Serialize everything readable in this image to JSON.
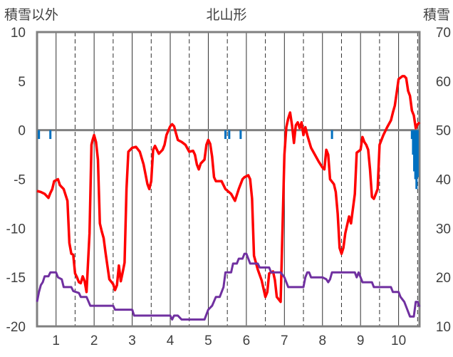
{
  "chart_data": {
    "type": "line",
    "title": "北山形",
    "ylabel_left": "積雪以外",
    "ylabel_right": "積雪",
    "x_ticks": [
      "1",
      "2",
      "3",
      "4",
      "5",
      "6",
      "7",
      "8",
      "9",
      "10"
    ],
    "xlim": [
      0.5,
      10.55
    ],
    "ylim_left": [
      -20,
      10
    ],
    "ylim_right": [
      10,
      70
    ],
    "yticks_left": [
      10,
      5,
      0,
      -5,
      -10,
      -15,
      -20
    ],
    "yticks_right": [
      70,
      60,
      50,
      40,
      30,
      20,
      10
    ],
    "grid": "vertical: solid at integers, dashed at halves",
    "colors": {
      "red": "#ff0000",
      "purple": "#7030a0",
      "blue": "#0070c0",
      "axis": "#808080"
    },
    "series": [
      {
        "axis": "left",
        "color": "#ff0000",
        "style": "line",
        "points": [
          [
            0.5,
            -6.2
          ],
          [
            0.6,
            -6.3
          ],
          [
            0.7,
            -6.5
          ],
          [
            0.8,
            -6.9
          ],
          [
            0.85,
            -6.4
          ],
          [
            0.9,
            -6.0
          ],
          [
            0.95,
            -5.2
          ],
          [
            1.05,
            -5.0
          ],
          [
            1.1,
            -5.6
          ],
          [
            1.2,
            -6.0
          ],
          [
            1.3,
            -7.2
          ],
          [
            1.35,
            -11.5
          ],
          [
            1.4,
            -12.6
          ],
          [
            1.45,
            -12.7
          ],
          [
            1.5,
            -14.6
          ],
          [
            1.55,
            -15.0
          ],
          [
            1.6,
            -15.5
          ],
          [
            1.65,
            -15.6
          ],
          [
            1.7,
            -14.9
          ],
          [
            1.75,
            -15.4
          ],
          [
            1.8,
            -16.5
          ],
          [
            1.88,
            -10.5
          ],
          [
            1.93,
            -1.5
          ],
          [
            1.96,
            -1.0
          ],
          [
            2.0,
            -0.5
          ],
          [
            2.05,
            -1.2
          ],
          [
            2.1,
            -3.0
          ],
          [
            2.15,
            -9.5
          ],
          [
            2.2,
            -10.3
          ],
          [
            2.25,
            -11.0
          ],
          [
            2.3,
            -12.5
          ],
          [
            2.4,
            -15.2
          ],
          [
            2.5,
            -15.7
          ],
          [
            2.55,
            -16.3
          ],
          [
            2.6,
            -15.8
          ],
          [
            2.65,
            -13.8
          ],
          [
            2.7,
            -15.4
          ],
          [
            2.75,
            -14.5
          ],
          [
            2.8,
            -13.5
          ],
          [
            2.85,
            -6.0
          ],
          [
            2.9,
            -2.2
          ],
          [
            3.0,
            -1.8
          ],
          [
            3.1,
            -1.7
          ],
          [
            3.2,
            -2.2
          ],
          [
            3.3,
            -3.5
          ],
          [
            3.4,
            -5.5
          ],
          [
            3.45,
            -6.0
          ],
          [
            3.5,
            -5.2
          ],
          [
            3.55,
            -2.0
          ],
          [
            3.6,
            -1.6
          ],
          [
            3.65,
            -2.0
          ],
          [
            3.7,
            -2.4
          ],
          [
            3.8,
            -2.0
          ],
          [
            3.85,
            -1.5
          ],
          [
            3.9,
            -0.5
          ],
          [
            4.0,
            0.4
          ],
          [
            4.05,
            0.6
          ],
          [
            4.1,
            0.4
          ],
          [
            4.15,
            -0.3
          ],
          [
            4.2,
            -1.0
          ],
          [
            4.3,
            -1.2
          ],
          [
            4.4,
            -1.5
          ],
          [
            4.5,
            -2.2
          ],
          [
            4.6,
            -2.1
          ],
          [
            4.65,
            -2.5
          ],
          [
            4.7,
            -3.5
          ],
          [
            4.75,
            -4.0
          ],
          [
            4.8,
            -3.4
          ],
          [
            4.9,
            -3.0
          ],
          [
            4.95,
            -1.5
          ],
          [
            5.0,
            -1.0
          ],
          [
            5.05,
            -1.4
          ],
          [
            5.1,
            -2.7
          ],
          [
            5.15,
            -4.8
          ],
          [
            5.2,
            -5.2
          ],
          [
            5.35,
            -5.2
          ],
          [
            5.45,
            -6.0
          ],
          [
            5.6,
            -6.5
          ],
          [
            5.7,
            -7.2
          ],
          [
            5.8,
            -6.0
          ],
          [
            5.9,
            -5.0
          ],
          [
            5.95,
            -4.8
          ],
          [
            6.05,
            -4.6
          ],
          [
            6.1,
            -5.0
          ],
          [
            6.15,
            -7.0
          ],
          [
            6.2,
            -12.8
          ],
          [
            6.3,
            -14.2
          ],
          [
            6.4,
            -15.3
          ],
          [
            6.5,
            -17.0
          ],
          [
            6.55,
            -16.5
          ],
          [
            6.6,
            -14.6
          ],
          [
            6.7,
            -14.4
          ],
          [
            6.75,
            -15.3
          ],
          [
            6.8,
            -17.0
          ],
          [
            6.9,
            -17.5
          ],
          [
            7.0,
            -2.5
          ],
          [
            7.05,
            0.3
          ],
          [
            7.1,
            1.2
          ],
          [
            7.15,
            1.8
          ],
          [
            7.2,
            0.5
          ],
          [
            7.25,
            -1.3
          ],
          [
            7.3,
            0.5
          ],
          [
            7.35,
            0.8
          ],
          [
            7.4,
            0.2
          ],
          [
            7.45,
            0.8
          ],
          [
            7.5,
            -0.5
          ],
          [
            7.55,
            0.3
          ],
          [
            7.6,
            -0.5
          ],
          [
            7.7,
            -1.8
          ],
          [
            7.8,
            -2.5
          ],
          [
            7.9,
            -3.2
          ],
          [
            8.0,
            -3.8
          ],
          [
            8.05,
            -4.0
          ],
          [
            8.1,
            -2.0
          ],
          [
            8.15,
            -2.5
          ],
          [
            8.2,
            -5.0
          ],
          [
            8.3,
            -5.5
          ],
          [
            8.35,
            -6.3
          ],
          [
            8.4,
            -8.5
          ],
          [
            8.45,
            -12.0
          ],
          [
            8.5,
            -12.6
          ],
          [
            8.55,
            -12.0
          ],
          [
            8.6,
            -10.5
          ],
          [
            8.7,
            -8.8
          ],
          [
            8.75,
            -9.5
          ],
          [
            8.8,
            -8.0
          ],
          [
            8.85,
            -6.5
          ],
          [
            8.9,
            -2.3
          ],
          [
            9.0,
            -2.0
          ],
          [
            9.05,
            -0.7
          ],
          [
            9.1,
            -1.2
          ],
          [
            9.15,
            -1.5
          ],
          [
            9.2,
            -2.0
          ],
          [
            9.25,
            -4.0
          ],
          [
            9.3,
            -6.8
          ],
          [
            9.35,
            -7.0
          ],
          [
            9.4,
            -6.5
          ],
          [
            9.45,
            -6.0
          ],
          [
            9.5,
            -1.5
          ],
          [
            9.6,
            -0.5
          ],
          [
            9.7,
            0.3
          ],
          [
            9.8,
            1.0
          ],
          [
            9.85,
            1.8
          ],
          [
            9.9,
            2.5
          ],
          [
            9.95,
            3.8
          ],
          [
            10.0,
            5.2
          ],
          [
            10.1,
            5.5
          ],
          [
            10.15,
            5.5
          ],
          [
            10.2,
            5.3
          ],
          [
            10.25,
            4.0
          ],
          [
            10.3,
            3.5
          ],
          [
            10.35,
            2.0
          ],
          [
            10.4,
            1.5
          ],
          [
            10.45,
            0.2
          ],
          [
            10.5,
            0.6
          ],
          [
            10.55,
            0.8
          ]
        ]
      },
      {
        "axis": "left",
        "color": "#7030a0",
        "style": "line",
        "points": [
          [
            0.5,
            -17.5
          ],
          [
            0.55,
            -16.5
          ],
          [
            0.6,
            -15.8
          ],
          [
            0.65,
            -15.5
          ],
          [
            0.7,
            -14.9
          ],
          [
            0.8,
            -14.9
          ],
          [
            0.85,
            -14.5
          ],
          [
            1.0,
            -14.5
          ],
          [
            1.05,
            -15.0
          ],
          [
            1.15,
            -15.2
          ],
          [
            1.2,
            -16.0
          ],
          [
            1.4,
            -16.0
          ],
          [
            1.45,
            -16.4
          ],
          [
            1.6,
            -16.6
          ],
          [
            1.65,
            -17.0
          ],
          [
            1.8,
            -17.0
          ],
          [
            1.9,
            -17.9
          ],
          [
            2.0,
            -17.9
          ],
          [
            2.05,
            -17.9
          ],
          [
            2.5,
            -17.9
          ],
          [
            2.55,
            -18.3
          ],
          [
            3.0,
            -18.3
          ],
          [
            3.05,
            -18.9
          ],
          [
            3.5,
            -18.9
          ],
          [
            3.55,
            -18.9
          ],
          [
            4.0,
            -18.9
          ],
          [
            4.05,
            -19.3
          ],
          [
            4.1,
            -18.9
          ],
          [
            4.2,
            -18.9
          ],
          [
            4.3,
            -19.3
          ],
          [
            4.9,
            -19.3
          ],
          [
            5.0,
            -18.3
          ],
          [
            5.1,
            -17.9
          ],
          [
            5.2,
            -17.0
          ],
          [
            5.3,
            -17.0
          ],
          [
            5.4,
            -16.0
          ],
          [
            5.45,
            -14.5
          ],
          [
            5.5,
            -14.5
          ],
          [
            5.6,
            -14.5
          ],
          [
            5.65,
            -13.6
          ],
          [
            5.75,
            -13.6
          ],
          [
            5.8,
            -13.1
          ],
          [
            5.9,
            -13.1
          ],
          [
            5.95,
            -12.6
          ],
          [
            6.0,
            -12.6
          ],
          [
            6.05,
            -13.1
          ],
          [
            6.1,
            -13.6
          ],
          [
            6.3,
            -13.6
          ],
          [
            6.35,
            -14.0
          ],
          [
            6.6,
            -14.0
          ],
          [
            6.65,
            -14.5
          ],
          [
            6.9,
            -14.5
          ],
          [
            7.0,
            -15.0
          ],
          [
            7.05,
            -15.5
          ],
          [
            7.1,
            -16.0
          ],
          [
            7.5,
            -16.0
          ],
          [
            7.55,
            -15.0
          ],
          [
            7.6,
            -14.5
          ],
          [
            7.65,
            -14.5
          ],
          [
            7.7,
            -15.0
          ],
          [
            8.0,
            -15.0
          ],
          [
            8.1,
            -15.2
          ],
          [
            8.15,
            -15.5
          ],
          [
            8.2,
            -15.2
          ],
          [
            8.25,
            -14.5
          ],
          [
            8.5,
            -14.5
          ],
          [
            8.85,
            -14.5
          ],
          [
            8.9,
            -15.0
          ],
          [
            8.95,
            -14.5
          ],
          [
            9.0,
            -15.0
          ],
          [
            9.05,
            -15.5
          ],
          [
            9.3,
            -15.5
          ],
          [
            9.35,
            -16.0
          ],
          [
            9.8,
            -16.0
          ],
          [
            9.85,
            -16.5
          ],
          [
            10.0,
            -16.5
          ],
          [
            10.05,
            -17.0
          ],
          [
            10.15,
            -17.5
          ],
          [
            10.2,
            -18.0
          ],
          [
            10.3,
            -19.0
          ],
          [
            10.4,
            -19.0
          ],
          [
            10.45,
            -17.5
          ],
          [
            10.5,
            -17.5
          ],
          [
            10.55,
            -18.0
          ]
        ]
      },
      {
        "axis": "left",
        "color": "#0070c0",
        "style": "bars-from-zero",
        "bars": [
          [
            0.55,
            -0.9
          ],
          [
            0.85,
            -0.9
          ],
          [
            5.45,
            -0.9
          ],
          [
            5.55,
            -0.9
          ],
          [
            5.85,
            -0.9
          ],
          [
            8.25,
            -0.9
          ],
          [
            10.35,
            -0.9
          ],
          [
            10.38,
            -2.5
          ],
          [
            10.41,
            -4.2
          ],
          [
            10.44,
            -5.0
          ],
          [
            10.47,
            -6.0
          ],
          [
            10.5,
            -4.8
          ]
        ]
      }
    ]
  }
}
